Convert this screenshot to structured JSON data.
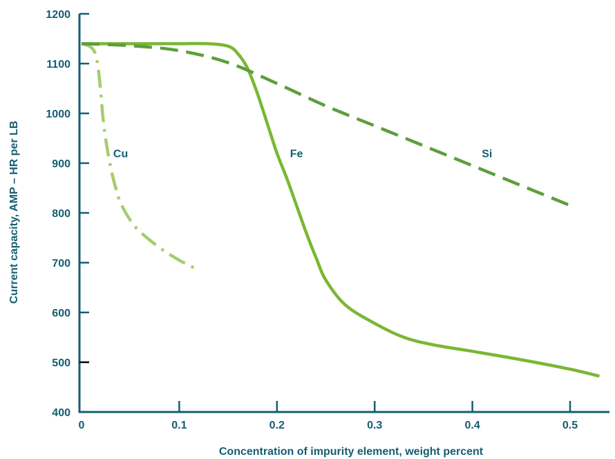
{
  "chart_data": {
    "type": "line",
    "title": "",
    "xlabel": "Concentration of impurity element, weight percent",
    "ylabel": "Current capacity, AMP – HR per LB",
    "xlim": [
      0,
      0.54
    ],
    "ylim": [
      400,
      1200
    ],
    "x_ticks": [
      0,
      0.1,
      0.2,
      0.3,
      0.4,
      0.5
    ],
    "x_tick_labels": [
      "0",
      "0.1",
      "0.2",
      "0.3",
      "0.4",
      "0.5"
    ],
    "y_ticks": [
      400,
      500,
      600,
      700,
      800,
      900,
      1000,
      1100,
      1200
    ],
    "y_tick_labels": [
      "400",
      "500",
      "600",
      "700",
      "800",
      "900",
      "1000",
      "1100",
      "1200"
    ],
    "grid": false,
    "legend": "none",
    "axis_color": "#135e72",
    "series": [
      {
        "name": "Cu",
        "color": "#a6cd6c",
        "dash": "dash-dot",
        "label_at": [
          0.04,
          920
        ],
        "x": [
          0,
          0.008,
          0.013,
          0.016,
          0.018,
          0.02,
          0.022,
          0.025,
          0.03,
          0.035,
          0.04,
          0.05,
          0.06,
          0.08,
          0.1,
          0.12
        ],
        "y": [
          1140,
          1135,
          1125,
          1105,
          1075,
          1035,
          990,
          945,
          890,
          850,
          820,
          785,
          762,
          730,
          705,
          685
        ]
      },
      {
        "name": "Fe",
        "color": "#7ab734",
        "dash": "solid",
        "label_at": [
          0.22,
          920
        ],
        "x": [
          0,
          0.05,
          0.1,
          0.13,
          0.15,
          0.16,
          0.17,
          0.18,
          0.19,
          0.2,
          0.21,
          0.22,
          0.23,
          0.24,
          0.25,
          0.27,
          0.3,
          0.33,
          0.36,
          0.4,
          0.45,
          0.5,
          0.53
        ],
        "y": [
          1140,
          1140,
          1140,
          1140,
          1135,
          1120,
          1090,
          1040,
          980,
          920,
          870,
          815,
          760,
          710,
          665,
          615,
          578,
          550,
          535,
          522,
          505,
          486,
          472
        ]
      },
      {
        "name": "Si",
        "color": "#5e9e3c",
        "dash": "dash",
        "label_at": [
          0.415,
          920
        ],
        "x": [
          0,
          0.05,
          0.1,
          0.15,
          0.2,
          0.25,
          0.3,
          0.35,
          0.4,
          0.45,
          0.5
        ],
        "y": [
          1140,
          1136,
          1126,
          1102,
          1060,
          1015,
          975,
          935,
          895,
          855,
          815
        ]
      }
    ]
  }
}
